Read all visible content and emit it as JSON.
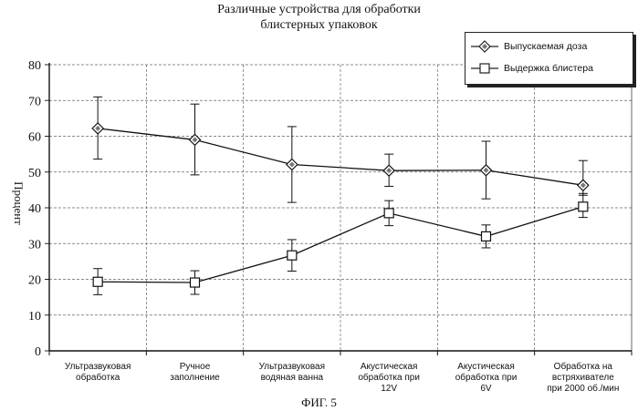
{
  "chart_data": {
    "type": "line",
    "title_line1": "Различные устройства для обработки",
    "title_line2": "блистерных упаковок",
    "ylabel": "Процент",
    "xlabel": "",
    "ylim": [
      0,
      80
    ],
    "yticks": [
      "0",
      "10",
      "20",
      "30",
      "40",
      "50",
      "60",
      "70",
      "80"
    ],
    "grid": true,
    "legend_position": "top-right",
    "categories": [
      [
        "Ультразвуковая",
        "обработка"
      ],
      [
        "Ручное",
        "заполнение"
      ],
      [
        "Ультразвуковая",
        "водяная ванна"
      ],
      [
        "Акустическая",
        "обработка при",
        "12V"
      ],
      [
        "Акустическая",
        "обработка при",
        "6V"
      ],
      [
        "Обработка на",
        "встряхивателе",
        "при 2000 об./мин"
      ]
    ],
    "series": [
      {
        "name": "Выпускаемая доза",
        "marker": "diamond",
        "values": [
          62.2,
          59.0,
          52.1,
          50.4,
          50.5,
          46.3
        ],
        "err_low": [
          53.6,
          49.2,
          41.5,
          46.0,
          42.5,
          43.5
        ],
        "err_high": [
          71.0,
          69.0,
          62.7,
          55.0,
          58.6,
          53.2
        ]
      },
      {
        "name": "Выдержка блистера",
        "marker": "square",
        "values": [
          19.3,
          19.1,
          26.7,
          38.5,
          32.0,
          40.3
        ],
        "err_low": [
          15.7,
          15.8,
          22.3,
          35.0,
          28.8,
          37.3
        ],
        "err_high": [
          23.0,
          22.4,
          31.1,
          42.0,
          35.2,
          44.0
        ]
      }
    ]
  },
  "figure_caption": "ФИГ. 5"
}
